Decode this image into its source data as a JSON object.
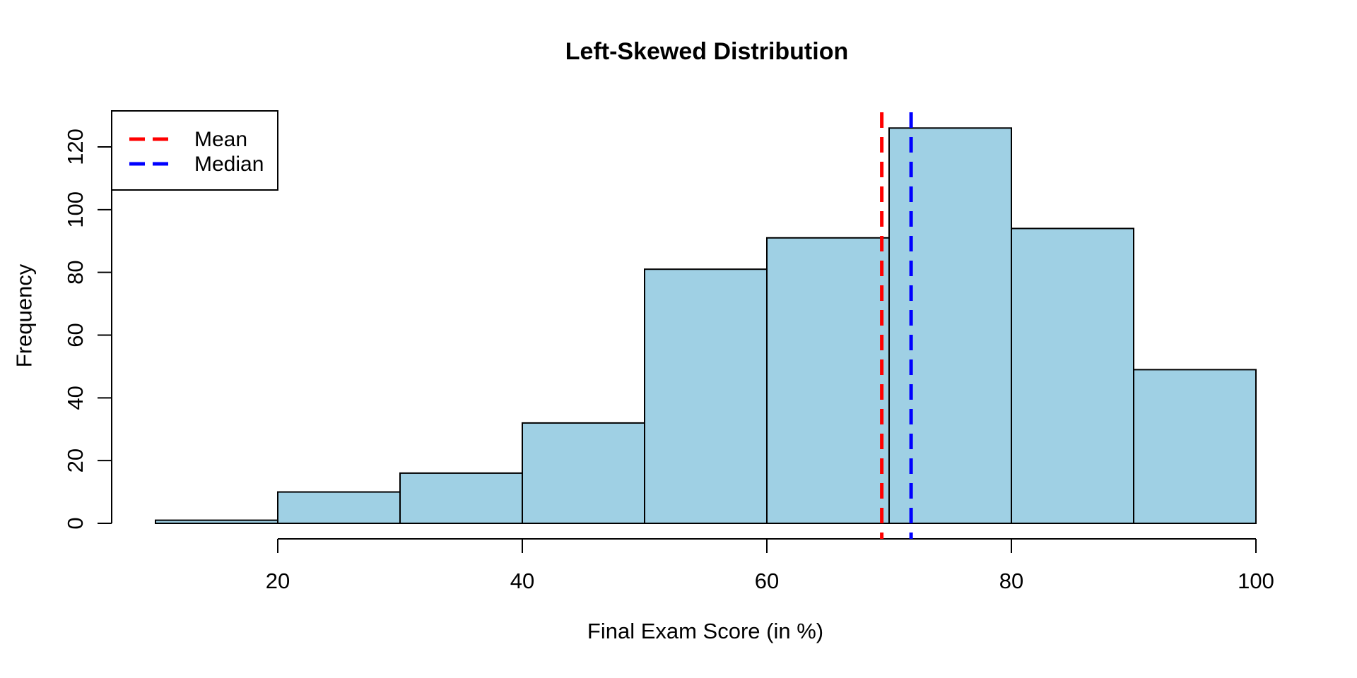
{
  "chart_data": {
    "type": "bar",
    "subtype": "histogram",
    "title": "Left-Skewed Distribution",
    "xlabel": "Final Exam Score (in %)",
    "ylabel": "Frequency",
    "bin_edges": [
      10,
      20,
      30,
      40,
      50,
      60,
      70,
      80,
      90,
      100
    ],
    "counts": [
      1,
      10,
      16,
      32,
      81,
      91,
      126,
      94,
      49
    ],
    "x_ticks": [
      20,
      40,
      60,
      80,
      100
    ],
    "y_ticks": [
      0,
      20,
      40,
      60,
      80,
      100,
      120
    ],
    "xlim": [
      10,
      100
    ],
    "ylim": [
      0,
      126
    ],
    "grid": false,
    "mean_line": {
      "label": "Mean",
      "value": 69.4,
      "color": "#FF0000",
      "style": "dashed"
    },
    "median_line": {
      "label": "Median",
      "value": 71.8,
      "color": "#0000FF",
      "style": "dashed"
    },
    "legend": {
      "position": "top-left",
      "items": [
        {
          "label": "Mean",
          "color": "#FF0000",
          "style": "dashed"
        },
        {
          "label": "Median",
          "color": "#0000FF",
          "style": "dashed"
        }
      ]
    },
    "style": {
      "bar_fill": "#9FD0E4",
      "bar_border": "#000000",
      "axis_color": "#000000",
      "text_color": "#000000",
      "background": "#FFFFFF"
    }
  }
}
